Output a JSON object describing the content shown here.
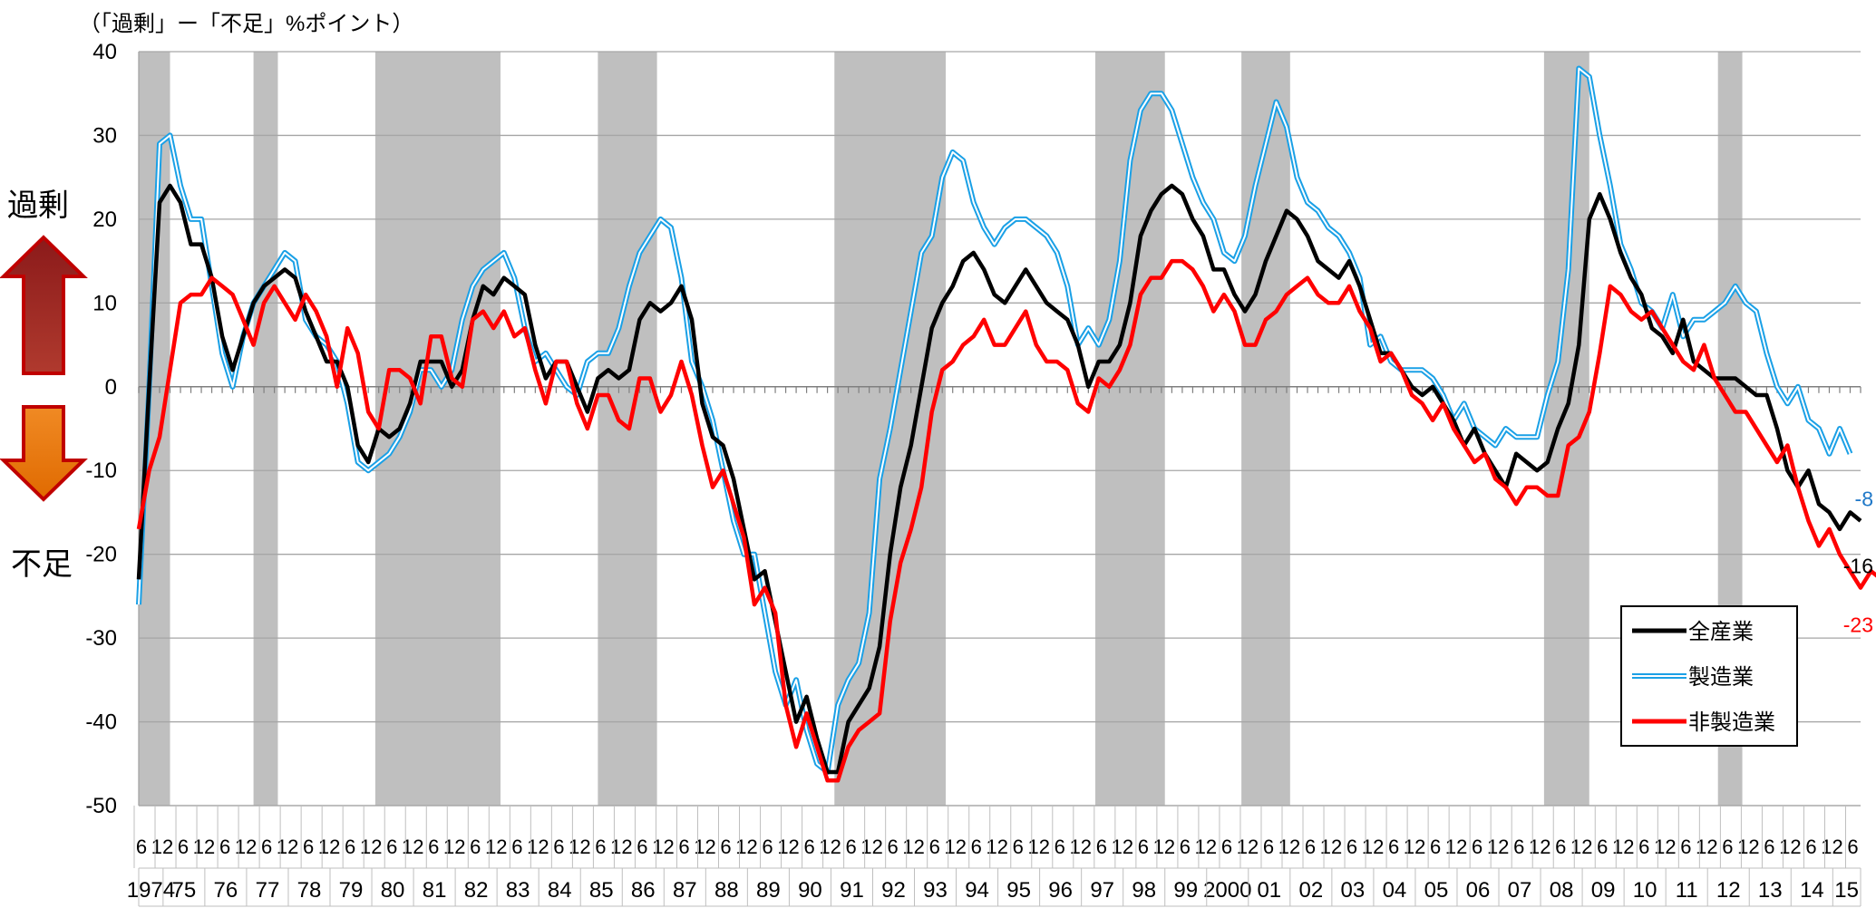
{
  "chart_data": {
    "type": "line",
    "unit_label": "（「過剰」ー「不足」%ポイント）",
    "side_labels": {
      "surplus": "過剰",
      "shortage": "不足"
    },
    "ylim": [
      -50,
      40
    ],
    "yticks": [
      40,
      30,
      20,
      10,
      0,
      -10,
      -20,
      -30,
      -40,
      -50
    ],
    "grid": true,
    "legend_position": "lower-right",
    "x_start": "1974-06",
    "x_end": "2015-09",
    "x_quarter_labels": [
      "6",
      "12",
      "6",
      "12"
    ],
    "year_labels": [
      {
        "label": "1974",
        "year": 1974
      },
      {
        "label": "75",
        "year": 1975
      },
      {
        "label": "76",
        "year": 1976
      },
      {
        "label": "77",
        "year": 1977
      },
      {
        "label": "78",
        "year": 1978
      },
      {
        "label": "79",
        "year": 1979
      },
      {
        "label": "80",
        "year": 1980
      },
      {
        "label": "81",
        "year": 1981
      },
      {
        "label": "82",
        "year": 1982
      },
      {
        "label": "83",
        "year": 1983
      },
      {
        "label": "84",
        "year": 1984
      },
      {
        "label": "85",
        "year": 1985
      },
      {
        "label": "86",
        "year": 1986
      },
      {
        "label": "87",
        "year": 1987
      },
      {
        "label": "88",
        "year": 1988
      },
      {
        "label": "89",
        "year": 1989
      },
      {
        "label": "90",
        "year": 1990
      },
      {
        "label": "91",
        "year": 1991
      },
      {
        "label": "92",
        "year": 1992
      },
      {
        "label": "93",
        "year": 1993
      },
      {
        "label": "94",
        "year": 1994
      },
      {
        "label": "95",
        "year": 1995
      },
      {
        "label": "96",
        "year": 1996
      },
      {
        "label": "97",
        "year": 1997
      },
      {
        "label": "98",
        "year": 1998
      },
      {
        "label": "99",
        "year": 1999
      },
      {
        "label": "2000",
        "year": 2000
      },
      {
        "label": "01",
        "year": 2001
      },
      {
        "label": "02",
        "year": 2002
      },
      {
        "label": "03",
        "year": 2003
      },
      {
        "label": "04",
        "year": 2004
      },
      {
        "label": "05",
        "year": 2005
      },
      {
        "label": "06",
        "year": 2006
      },
      {
        "label": "07",
        "year": 2007
      },
      {
        "label": "08",
        "year": 2008
      },
      {
        "label": "09",
        "year": 2009
      },
      {
        "label": "10",
        "year": 2010
      },
      {
        "label": "11",
        "year": 2011
      },
      {
        "label": "12",
        "year": 2012
      },
      {
        "label": "13",
        "year": 2013
      },
      {
        "label": "14",
        "year": 2014
      },
      {
        "label": "15",
        "year": 2015
      }
    ],
    "recessions": [
      {
        "start": "1974-03",
        "end": "1975-03"
      },
      {
        "start": "1977-03",
        "end": "1977-10"
      },
      {
        "start": "1980-02",
        "end": "1983-02"
      },
      {
        "start": "1985-06",
        "end": "1986-11"
      },
      {
        "start": "1991-02",
        "end": "1993-10"
      },
      {
        "start": "1997-05",
        "end": "1999-01"
      },
      {
        "start": "2000-11",
        "end": "2002-01"
      },
      {
        "start": "2008-02",
        "end": "2009-03"
      },
      {
        "start": "2012-04",
        "end": "2012-11"
      }
    ],
    "series": [
      {
        "name": "全産業",
        "color": "#000000",
        "style": "solid",
        "end_label": "-16",
        "values": [
          -23,
          0,
          22,
          24,
          22,
          17,
          17,
          13,
          6,
          2,
          6,
          10,
          12,
          13,
          14,
          13,
          9,
          6,
          3,
          3,
          0,
          -7,
          -9,
          -5,
          -6,
          -5,
          -2,
          3,
          3,
          3,
          0,
          2,
          8,
          12,
          11,
          13,
          12,
          11,
          5,
          1,
          3,
          3,
          0,
          -3,
          1,
          2,
          1,
          2,
          8,
          10,
          9,
          10,
          12,
          8,
          -2,
          -6,
          -7,
          -11,
          -17,
          -23,
          -22,
          -28,
          -34,
          -40,
          -37,
          -42,
          -46,
          -46,
          -40,
          -38,
          -36,
          -31,
          -20,
          -12,
          -7,
          0,
          7,
          10,
          12,
          15,
          16,
          14,
          11,
          10,
          12,
          14,
          12,
          10,
          9,
          8,
          5,
          0,
          3,
          3,
          5,
          10,
          18,
          21,
          23,
          24,
          23,
          20,
          18,
          14,
          14,
          11,
          9,
          11,
          15,
          18,
          21,
          20,
          18,
          15,
          14,
          13,
          15,
          12,
          8,
          4,
          4,
          2,
          0,
          -1,
          0,
          -2,
          -4,
          -7,
          -5,
          -8,
          -10,
          -12,
          -8,
          -9,
          -10,
          -9,
          -5,
          -2,
          5,
          20,
          23,
          20,
          16,
          13,
          11,
          7,
          6,
          4,
          8,
          3,
          2,
          1,
          1,
          1,
          0,
          -1,
          -1,
          -5,
          -10,
          -12,
          -10,
          -14,
          -15,
          -17,
          -15,
          -16
        ]
      },
      {
        "name": "製造業",
        "color": "#1aa0e6",
        "style": "double",
        "end_label": "-8",
        "values": [
          -26,
          0,
          29,
          30,
          24,
          20,
          20,
          12,
          4,
          0,
          6,
          10,
          12,
          14,
          16,
          15,
          8,
          6,
          5,
          3,
          -2,
          -9,
          -10,
          -9,
          -8,
          -6,
          -3,
          2,
          2,
          0,
          2,
          8,
          12,
          14,
          15,
          16,
          13,
          7,
          3,
          4,
          2,
          0,
          -1,
          3,
          4,
          4,
          7,
          12,
          16,
          18,
          20,
          19,
          13,
          3,
          0,
          -4,
          -10,
          -16,
          -20,
          -20,
          -27,
          -34,
          -38,
          -35,
          -41,
          -45,
          -46,
          -38,
          -35,
          -33,
          -27,
          -11,
          -5,
          2,
          9,
          16,
          18,
          25,
          28,
          27,
          22,
          19,
          17,
          19,
          20,
          20,
          19,
          18,
          16,
          12,
          5,
          7,
          5,
          8,
          15,
          27,
          33,
          35,
          35,
          33,
          29,
          25,
          22,
          20,
          16,
          15,
          18,
          24,
          29,
          34,
          31,
          25,
          22,
          21,
          19,
          18,
          16,
          13,
          5,
          6,
          3,
          2,
          2,
          2,
          1,
          -1,
          -4,
          -2,
          -5,
          -6,
          -7,
          -5,
          -6,
          -6,
          -6,
          -1,
          3,
          14,
          38,
          37,
          30,
          24,
          17,
          14,
          10,
          9,
          7,
          11,
          6,
          8,
          8,
          9,
          10,
          12,
          10,
          9,
          4,
          0,
          -2,
          0,
          -4,
          -5,
          -8,
          -5,
          -8
        ]
      },
      {
        "name": "非製造業",
        "color": "#ff0000",
        "style": "solid",
        "end_label": "-23",
        "values": [
          -17,
          -10,
          -6,
          2,
          10,
          11,
          11,
          13,
          12,
          11,
          8,
          5,
          10,
          12,
          10,
          8,
          11,
          9,
          6,
          0,
          7,
          4,
          -3,
          -5,
          2,
          2,
          1,
          -2,
          6,
          6,
          1,
          0,
          8,
          9,
          7,
          9,
          6,
          7,
          2,
          -2,
          3,
          3,
          -2,
          -5,
          -1,
          -1,
          -4,
          -5,
          1,
          1,
          -3,
          -1,
          3,
          -1,
          -7,
          -12,
          -10,
          -14,
          -18,
          -26,
          -24,
          -27,
          -38,
          -43,
          -39,
          -43,
          -47,
          -47,
          -43,
          -41,
          -40,
          -39,
          -28,
          -21,
          -17,
          -12,
          -3,
          2,
          3,
          5,
          6,
          8,
          5,
          5,
          7,
          9,
          5,
          3,
          3,
          2,
          -2,
          -3,
          1,
          0,
          2,
          5,
          11,
          13,
          13,
          15,
          15,
          14,
          12,
          9,
          11,
          9,
          5,
          5,
          8,
          9,
          11,
          12,
          13,
          11,
          10,
          10,
          12,
          9,
          7,
          3,
          4,
          2,
          -1,
          -2,
          -4,
          -2,
          -5,
          -7,
          -9,
          -8,
          -11,
          -12,
          -14,
          -12,
          -12,
          -13,
          -13,
          -7,
          -6,
          -3,
          4,
          12,
          11,
          9,
          8,
          9,
          7,
          5,
          3,
          2,
          5,
          1,
          -1,
          -3,
          -3,
          -5,
          -7,
          -9,
          -7,
          -12,
          -16,
          -19,
          -17,
          -20,
          -22,
          -24,
          -22,
          -23
        ]
      }
    ]
  }
}
